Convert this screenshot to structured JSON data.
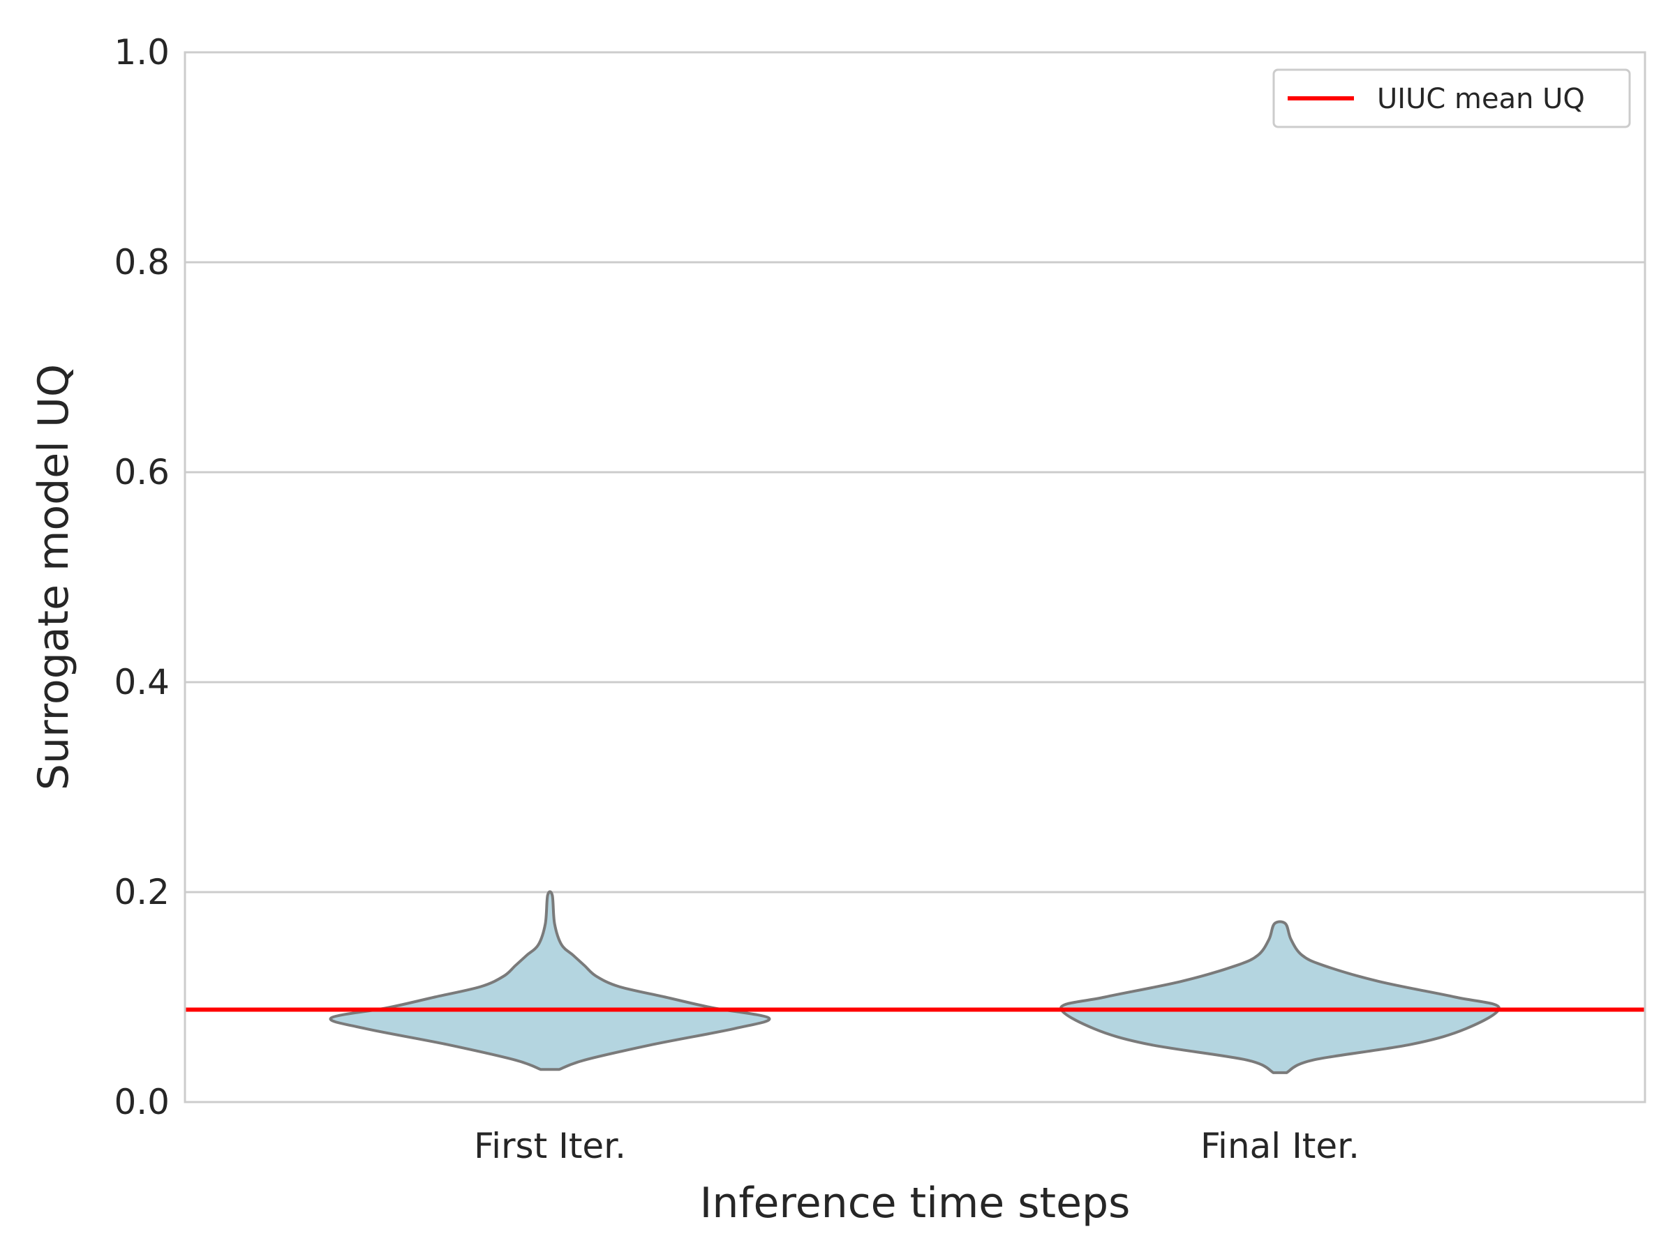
{
  "chart_data": {
    "type": "violin",
    "title": "",
    "xlabel": "Inference time steps",
    "ylabel": "Surrogate model UQ",
    "ylim": [
      0.0,
      1.0
    ],
    "yticks": [
      "0.0",
      "0.2",
      "0.4",
      "0.6",
      "0.8",
      "1.0"
    ],
    "grid": "horizontal",
    "legend_position": "top-right",
    "categories": [
      "First Iter.",
      "Final Iter."
    ],
    "violins": [
      {
        "category": "First Iter.",
        "profile": [
          [
            0.031,
            0.008
          ],
          [
            0.04,
            0.03
          ],
          [
            0.055,
            0.09
          ],
          [
            0.07,
            0.16
          ],
          [
            0.08,
            0.19
          ],
          [
            0.09,
            0.14
          ],
          [
            0.1,
            0.1
          ],
          [
            0.11,
            0.06
          ],
          [
            0.12,
            0.04
          ],
          [
            0.13,
            0.03
          ],
          [
            0.14,
            0.02
          ],
          [
            0.15,
            0.01
          ],
          [
            0.17,
            0.004
          ],
          [
            0.197,
            0.002
          ]
        ]
      },
      {
        "category": "Final Iter.",
        "profile": [
          [
            0.028,
            0.006
          ],
          [
            0.04,
            0.03
          ],
          [
            0.055,
            0.12
          ],
          [
            0.07,
            0.17
          ],
          [
            0.09,
            0.2
          ],
          [
            0.1,
            0.16
          ],
          [
            0.115,
            0.09
          ],
          [
            0.13,
            0.04
          ],
          [
            0.14,
            0.02
          ],
          [
            0.155,
            0.01
          ],
          [
            0.17,
            0.005
          ]
        ]
      }
    ],
    "reference_line": {
      "label": "UIUC mean UQ",
      "y": 0.088,
      "color": "#ff0000"
    },
    "violin_fill": "#b4d5e0",
    "violin_stroke": "#7a7a7a",
    "grid_color": "#cccccc"
  }
}
